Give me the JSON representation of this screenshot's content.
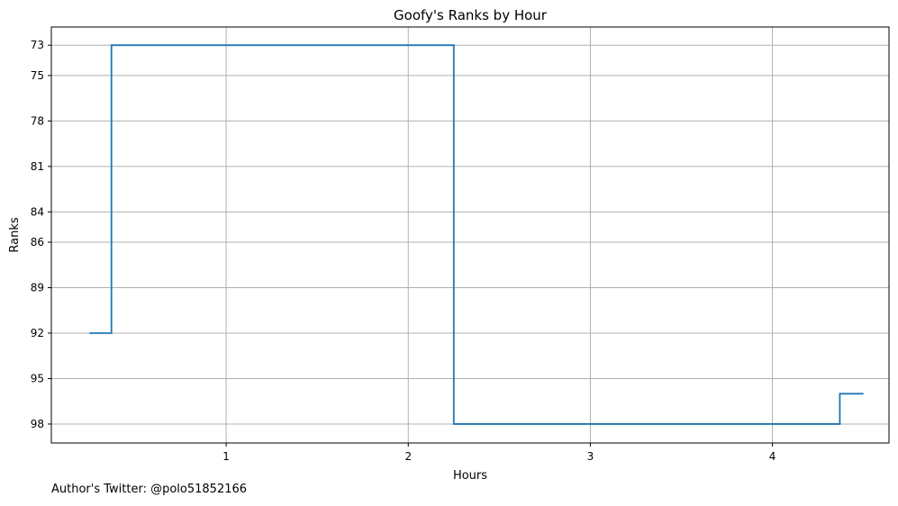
{
  "footer_note": "Author's Twitter: @polo51852166",
  "chart_data": {
    "type": "line",
    "drawstyle": "steps-post",
    "title": "Goofy's Ranks by Hour",
    "xlabel": "Hours",
    "ylabel": "Ranks",
    "x": [
      0.25,
      0.37,
      2.25,
      4.37,
      4.5
    ],
    "y": [
      92,
      73,
      98,
      96,
      96
    ],
    "xticks": [
      1,
      2,
      3,
      4
    ],
    "xlim": [
      0.04,
      4.64
    ],
    "yticks": [
      73,
      75,
      78,
      81,
      84,
      86,
      89,
      92,
      95,
      98
    ],
    "ylim": [
      99.25,
      71.8
    ],
    "y_inverted": true,
    "grid": true,
    "series_color": "#1f77b4"
  }
}
